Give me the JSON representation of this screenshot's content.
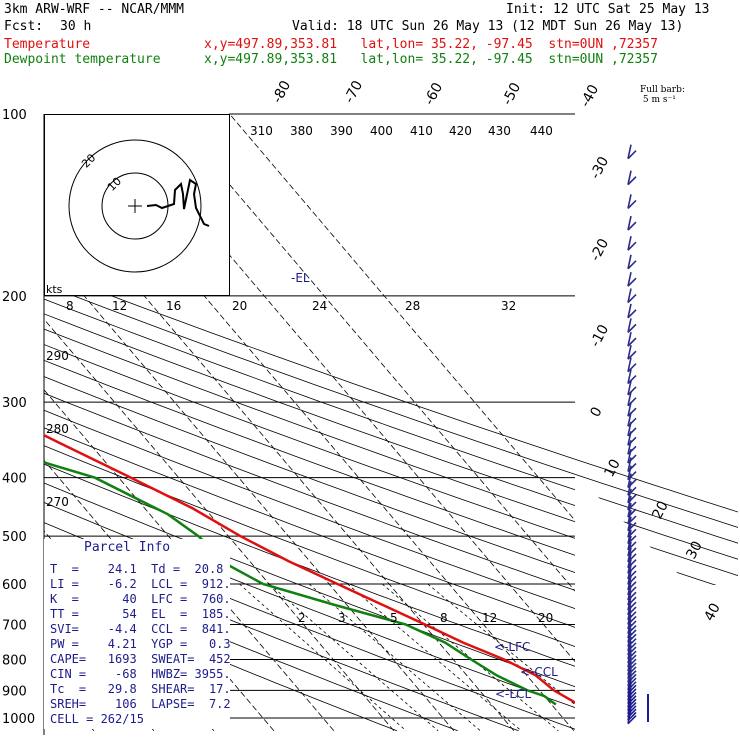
{
  "header": {
    "model": "3km ARW-WRF -- NCAR/MMM",
    "init": "Init: 12 UTC Sat 25 May 13",
    "fcst_label": "Fcst:",
    "fcst_value": "30 h",
    "valid": "Valid: 18 UTC Sun 26 May 13 (12 MDT Sun 26 May 13)"
  },
  "legend": [
    {
      "name": "Temperature",
      "info": "x,y=497.89,353.81   lat,lon= 35.22, -97.45  stn=0UN ,72357",
      "color": "#e01010"
    },
    {
      "name": "Dewpoint temperature",
      "info": "x,y=497.89,353.81   lat,lon= 35.22, -97.45  stn=0UN ,72357",
      "color": "#108010"
    }
  ],
  "barb_label": "Full barb:\n 5 m s⁻¹",
  "parcel_info": {
    "title": "Parcel Info",
    "rows": [
      "T  =    24.1  Td =  20.8",
      "LI =    -6.2  LCL =  912.",
      "K  =      40  LFC =  760.",
      "TT =      54  EL  =  185.",
      "SVI=    -4.4  CCL =  841.",
      "PW =    4.21  YGP =   0.3",
      "CAPE=   1693  SWEAT=  452",
      "CIN =    -68  HWBZ= 3955.",
      "Tc  =   29.8  SHEAR=  17.",
      "SREH=    106  LAPSE=  7.2",
      "CELL = 262/15"
    ]
  },
  "annotations": {
    "el": "-EL",
    "lfc": "<-LFC",
    "ccl": "<-CCL",
    "lcl": "<-LCL",
    "kts": "kts"
  },
  "chart_data": {
    "type": "line",
    "title": "Skew-T log-P sounding",
    "ylabel": "Pressure (hPa)",
    "pressure_ticks": [
      100,
      200,
      300,
      400,
      500,
      600,
      700,
      800,
      900,
      1000
    ],
    "isotherm_labels": [
      -80,
      -70,
      -60,
      -50,
      -40,
      -30,
      -20,
      -10,
      0,
      10,
      20,
      30,
      40
    ],
    "theta_labels": [
      310,
      380,
      390,
      400,
      410,
      420,
      430,
      440
    ],
    "theta_low_labels": [
      290,
      280,
      270
    ],
    "mixing_ratio_labels": [
      2,
      3,
      5,
      8,
      12,
      20
    ],
    "hodo_ring_labels": [
      20,
      10
    ],
    "hodo_speed_labels": [
      8,
      12,
      16,
      20,
      24,
      28,
      32
    ],
    "series": [
      {
        "name": "Temperature",
        "color": "#e01010",
        "points": [
          [
            1000,
            27
          ],
          [
            950,
            24.5
          ],
          [
            900,
            22.4
          ],
          [
            850,
            21.5
          ],
          [
            800,
            18.5
          ],
          [
            750,
            14
          ],
          [
            700,
            10.2
          ],
          [
            650,
            6
          ],
          [
            600,
            1.4
          ],
          [
            550,
            -3.5
          ],
          [
            500,
            -8
          ],
          [
            450,
            -12
          ],
          [
            400,
            -18
          ],
          [
            350,
            -25
          ],
          [
            300,
            -33
          ],
          [
            250,
            -42
          ],
          [
            220,
            -49
          ],
          [
            200,
            -54
          ],
          [
            185,
            -57
          ],
          [
            160,
            -60
          ],
          [
            140,
            -62
          ],
          [
            120,
            -64
          ],
          [
            105,
            -67
          ],
          [
            100,
            -70
          ]
        ]
      },
      {
        "name": "Dewpoint temperature",
        "color": "#108010",
        "points": [
          [
            950,
            20.7
          ],
          [
            920,
            20
          ],
          [
            900,
            18
          ],
          [
            850,
            15
          ],
          [
            800,
            13
          ],
          [
            750,
            11
          ],
          [
            700,
            7
          ],
          [
            650,
            -2
          ],
          [
            600,
            -11
          ],
          [
            560,
            -14
          ],
          [
            500,
            -15
          ],
          [
            460,
            -17
          ],
          [
            400,
            -24
          ],
          [
            330,
            -45
          ],
          [
            300,
            -57
          ],
          [
            270,
            -58
          ],
          [
            250,
            -58
          ],
          [
            230,
            -59
          ],
          [
            200,
            -65
          ],
          [
            170,
            -72
          ],
          [
            140,
            -80
          ],
          [
            120,
            -86
          ],
          [
            100,
            -90
          ]
        ]
      }
    ]
  }
}
